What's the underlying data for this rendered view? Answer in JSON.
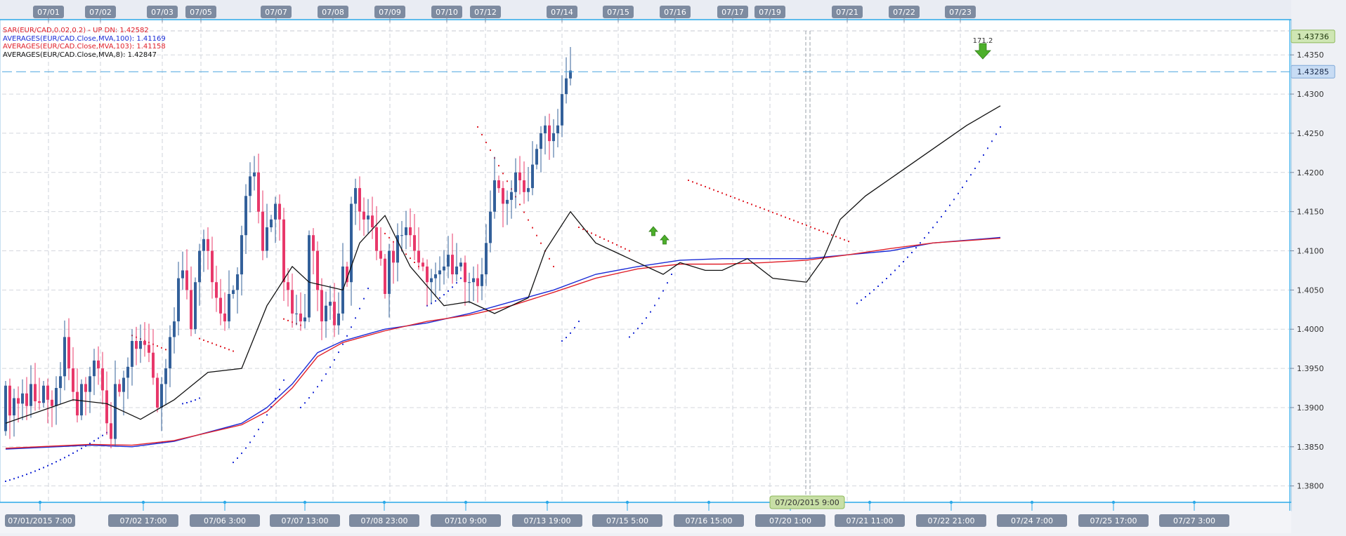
{
  "chart_data": {
    "type": "candlestick",
    "symbol": "EUR/CAD",
    "indicators": [
      {
        "label": "SAR(EUR/CAD,0.02,0.2) - UP DN: 1.42582",
        "color": "#e0202a"
      },
      {
        "label": "AVERAGES(EUR/CAD.Close,MVA,100): 1.41169",
        "color": "#1a2bd6"
      },
      {
        "label": "AVERAGES(EUR/CAD.Close,MVA,103): 1.41158",
        "color": "#e0202a"
      },
      {
        "label": "AVERAGES(EUR/CAD.Close,MVA,8): 1.42847",
        "color": "#111111"
      }
    ],
    "top_date_labels": [
      "07/01",
      "07/02",
      "07/03",
      "07/05",
      "07/07",
      "07/08",
      "07/09",
      "07/10",
      "07/12",
      "07/14",
      "07/15",
      "07/16",
      "07/17",
      "07/19",
      "07/21",
      "07/22",
      "07/23"
    ],
    "bottom_time_labels": [
      "07/01/2015 7:00",
      "07/02 17:00",
      "07/06 3:00",
      "07/07 13:00",
      "07/08 23:00",
      "07/10 9:00",
      "07/13 19:00",
      "07/15 5:00",
      "07/16 15:00",
      "07/20 1:00",
      "07/21 11:00",
      "07/22 21:00",
      "07/24 7:00",
      "07/25 17:00",
      "07/27 3:00"
    ],
    "cursor_label": "07/20/2015 9:00",
    "y_ticks": [
      "1.3800",
      "1.3850",
      "1.3900",
      "1.3950",
      "1.4000",
      "1.4050",
      "1.4100",
      "1.4150",
      "1.4200",
      "1.4250",
      "1.4300",
      "1.4350"
    ],
    "ylim": [
      1.378,
      1.4386
    ],
    "current_price_label": "1.43285",
    "current_price": 1.43285,
    "high_label": "1.43736",
    "high_price": 1.43736,
    "annotation_label": "171.2",
    "up_color": "#33609a",
    "down_color": "#e8386a",
    "closes": [
      1.3928,
      1.389,
      1.3912,
      1.3905,
      1.3918,
      1.3902,
      1.393,
      1.3908,
      1.3906,
      1.3928,
      1.391,
      1.3902,
      1.3925,
      1.394,
      1.399,
      1.395,
      1.392,
      1.389,
      1.393,
      1.392,
      1.394,
      1.396,
      1.395,
      1.3922,
      1.388,
      1.386,
      1.393,
      1.392,
      1.3938,
      1.3952,
      1.3985,
      1.3975,
      1.3985,
      1.398,
      1.397,
      1.3938,
      1.39,
      1.393,
      1.395,
      1.399,
      1.401,
      1.4065,
      1.4075,
      1.405,
      1.4,
      1.406,
      1.41,
      1.4115,
      1.41,
      1.406,
      1.404,
      1.402,
      1.401,
      1.4045,
      1.405,
      1.407,
      1.412,
      1.417,
      1.4195,
      1.42,
      1.415,
      1.41,
      1.413,
      1.414,
      1.416,
      1.414,
      1.406,
      1.405,
      1.402,
      1.402,
      1.401,
      1.4015,
      1.412,
      1.41,
      1.405,
      1.401,
      1.403,
      1.4035,
      1.4005,
      1.402,
      1.408,
      1.406,
      1.416,
      1.418,
      1.415,
      1.414,
      1.4145,
      1.413,
      1.41,
      1.409,
      1.4045,
      1.41,
      1.4085,
      1.412,
      1.412,
      1.413,
      1.412,
      1.41,
      1.4085,
      1.408,
      1.406,
      1.4065,
      1.407,
      1.4075,
      1.408,
      1.4095,
      1.407,
      1.408,
      1.4085,
      1.406,
      1.406,
      1.4065,
      1.4055,
      1.407,
      1.411,
      1.415,
      1.419,
      1.418,
      1.416,
      1.4165,
      1.4175,
      1.42,
      1.419,
      1.4175,
      1.418,
      1.421,
      1.423,
      1.425,
      1.426,
      1.424,
      1.425,
      1.426,
      1.43,
      1.432,
      1.433
    ],
    "mva8_points": [
      [
        0,
        1.388
      ],
      [
        8,
        1.3895
      ],
      [
        16,
        1.391
      ],
      [
        24,
        1.3905
      ],
      [
        32,
        1.3885
      ],
      [
        40,
        1.391
      ],
      [
        48,
        1.3945
      ],
      [
        56,
        1.395
      ],
      [
        62,
        1.403
      ],
      [
        68,
        1.408
      ],
      [
        72,
        1.406
      ],
      [
        80,
        1.405
      ],
      [
        84,
        1.411
      ],
      [
        90,
        1.4145
      ],
      [
        96,
        1.408
      ],
      [
        104,
        1.403
      ],
      [
        110,
        1.4035
      ],
      [
        116,
        1.402
      ],
      [
        124,
        1.404
      ],
      [
        128,
        1.41
      ],
      [
        134,
        1.415
      ],
      [
        140,
        1.411
      ],
      [
        148,
        1.409
      ],
      [
        156,
        1.407
      ],
      [
        160,
        1.4085
      ],
      [
        166,
        1.4075
      ],
      [
        170,
        1.4075
      ],
      [
        176,
        1.409
      ],
      [
        182,
        1.4065
      ],
      [
        190,
        1.406
      ],
      [
        194,
        1.409
      ],
      [
        198,
        1.414
      ],
      [
        204,
        1.417
      ],
      [
        212,
        1.42
      ],
      [
        220,
        1.423
      ],
      [
        228,
        1.426
      ],
      [
        236,
        1.4285
      ]
    ],
    "mva100_points": [
      [
        0,
        1.3847
      ],
      [
        20,
        1.3852
      ],
      [
        30,
        1.385
      ],
      [
        40,
        1.3857
      ],
      [
        56,
        1.388
      ],
      [
        62,
        1.39
      ],
      [
        68,
        1.393
      ],
      [
        74,
        1.397
      ],
      [
        80,
        1.3985
      ],
      [
        90,
        1.4
      ],
      [
        100,
        1.4008
      ],
      [
        110,
        1.402
      ],
      [
        120,
        1.4035
      ],
      [
        130,
        1.405
      ],
      [
        140,
        1.407
      ],
      [
        150,
        1.408
      ],
      [
        160,
        1.4088
      ],
      [
        170,
        1.409
      ],
      [
        180,
        1.409
      ],
      [
        190,
        1.409
      ],
      [
        200,
        1.4095
      ],
      [
        210,
        1.41
      ],
      [
        220,
        1.411
      ],
      [
        236,
        1.4117
      ]
    ],
    "mva103_points": [
      [
        0,
        1.3848
      ],
      [
        20,
        1.3853
      ],
      [
        30,
        1.3852
      ],
      [
        40,
        1.3858
      ],
      [
        56,
        1.3878
      ],
      [
        62,
        1.3895
      ],
      [
        68,
        1.3925
      ],
      [
        74,
        1.3965
      ],
      [
        80,
        1.3983
      ],
      [
        90,
        1.3998
      ],
      [
        100,
        1.401
      ],
      [
        110,
        1.4018
      ],
      [
        120,
        1.403
      ],
      [
        130,
        1.4047
      ],
      [
        140,
        1.4065
      ],
      [
        150,
        1.4077
      ],
      [
        160,
        1.4083
      ],
      [
        170,
        1.4083
      ],
      [
        180,
        1.4085
      ],
      [
        190,
        1.4088
      ],
      [
        200,
        1.4095
      ],
      [
        210,
        1.4103
      ],
      [
        220,
        1.411
      ],
      [
        236,
        1.4116
      ]
    ],
    "sar_segments": [
      {
        "dir": "up",
        "from": [
          0,
          1.3806
        ],
        "to": [
          24,
          1.3868
        ]
      },
      {
        "dir": "down",
        "from": [
          30,
          1.3992
        ],
        "to": [
          38,
          1.3974
        ]
      },
      {
        "dir": "up",
        "from": [
          42,
          1.3905
        ],
        "to": [
          46,
          1.3912
        ]
      },
      {
        "dir": "down",
        "from": [
          46,
          1.3988
        ],
        "to": [
          54,
          1.3972
        ]
      },
      {
        "dir": "up",
        "from": [
          54,
          1.383
        ],
        "to": [
          66,
          1.3935
        ]
      },
      {
        "dir": "down",
        "from": [
          66,
          1.4013
        ],
        "to": [
          70,
          1.4005
        ]
      },
      {
        "dir": "up",
        "from": [
          70,
          1.39
        ],
        "to": [
          86,
          1.4052
        ]
      },
      {
        "dir": "down",
        "from": [
          90,
          1.4122
        ],
        "to": [
          98,
          1.408
        ]
      },
      {
        "dir": "up",
        "from": [
          100,
          1.403
        ],
        "to": [
          108,
          1.4065
        ]
      },
      {
        "dir": "down",
        "from": [
          112,
          1.4258
        ],
        "to": [
          130,
          1.408
        ]
      },
      {
        "dir": "up",
        "from": [
          132,
          1.3985
        ],
        "to": [
          136,
          1.401
        ]
      },
      {
        "dir": "down",
        "from": [
          136,
          1.413
        ],
        "to": [
          148,
          1.41
        ]
      },
      {
        "dir": "up",
        "from": [
          148,
          1.399
        ],
        "to": [
          158,
          1.407
        ]
      },
      {
        "dir": "down",
        "from": [
          162,
          1.419
        ],
        "to": [
          200,
          1.4112
        ]
      },
      {
        "dir": "up",
        "from": [
          202,
          1.4033
        ],
        "to": [
          236,
          1.4258
        ]
      }
    ]
  }
}
